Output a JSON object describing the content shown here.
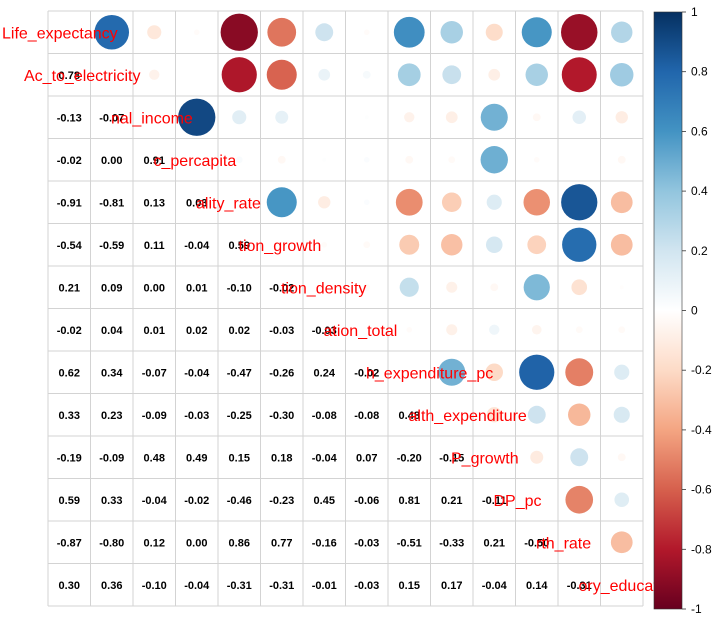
{
  "chart_data": {
    "type": "heatmap",
    "variables": [
      "Life_expectancy",
      "Access_to_electricity",
      "National_income",
      "GDP_percapita",
      "Mortality_rate",
      "Population_growth",
      "Population_density",
      "Population_total",
      "Health_expenditure_pc",
      "Health_expenditure",
      "GDP_growth",
      "GDP_pc",
      "Birth_rate",
      "Compulsory_education"
    ],
    "diagonal_labels": [
      "Life_expectancy",
      "Ac_to_electricity",
      "nal_income",
      "c_percapita",
      "ality_rate",
      "tion_growth",
      "tion_density",
      "ation_total",
      "h_expenditure_pc",
      "alth_expenditure",
      "P_growth",
      "DP_pc",
      "rth_rate",
      "ory_education"
    ],
    "lower_triangle": [
      [],
      [
        0.78
      ],
      [
        -0.13,
        -0.07
      ],
      [
        -0.02,
        0.0,
        0.91
      ],
      [
        -0.91,
        -0.81,
        0.13,
        0.03
      ],
      [
        -0.54,
        -0.59,
        0.11,
        -0.04,
        0.59
      ],
      [
        0.21,
        0.09,
        0.0,
        0.01,
        -0.1,
        -0.02
      ],
      [
        -0.02,
        0.04,
        0.01,
        0.02,
        0.02,
        -0.03,
        -0.03
      ],
      [
        0.62,
        0.34,
        -0.07,
        -0.04,
        -0.47,
        -0.26,
        0.24,
        -0.02
      ],
      [
        0.33,
        0.23,
        -0.09,
        -0.03,
        -0.25,
        -0.3,
        -0.08,
        -0.08,
        0.48
      ],
      [
        -0.19,
        -0.09,
        0.48,
        0.49,
        0.15,
        0.18,
        -0.04,
        0.07,
        -0.2,
        -0.15
      ],
      [
        0.59,
        0.33,
        -0.04,
        -0.02,
        -0.46,
        -0.23,
        0.45,
        -0.06,
        0.81,
        0.21,
        -0.11
      ],
      [
        -0.87,
        -0.8,
        0.12,
        0.0,
        0.86,
        0.77,
        -0.16,
        -0.03,
        -0.51,
        -0.33,
        0.21,
        -0.5
      ],
      [
        0.3,
        0.36,
        -0.1,
        -0.04,
        -0.31,
        -0.31,
        -0.01,
        -0.03,
        0.15,
        0.17,
        -0.04,
        0.14,
        -0.31
      ]
    ],
    "upper_display": "circles",
    "lower_display": "numbers",
    "colorbar": {
      "range": [
        -1,
        1
      ],
      "ticks": [
        "1",
        "0.8",
        "0.6",
        "0.4",
        "0.2",
        "0",
        "-0.2",
        "-0.4",
        "-0.6",
        "-0.8",
        "-1"
      ],
      "colors": [
        "#67001F",
        "#B2182B",
        "#D6604D",
        "#F4A582",
        "#FDDBC7",
        "#FFFFFF",
        "#D1E5F0",
        "#92C5DE",
        "#4393C3",
        "#2166AC",
        "#053061"
      ]
    },
    "label_color": "#ff0000",
    "grid": true
  }
}
